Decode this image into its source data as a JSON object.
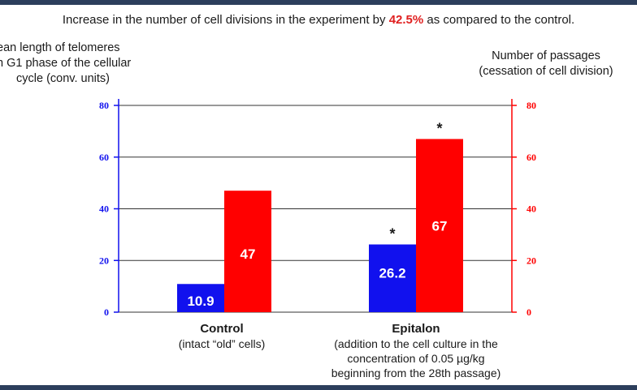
{
  "title": {
    "prefix": "Increase in the number of cell divisions in the experiment by",
    "highlight": "42.5%",
    "suffix": "as compared to the control."
  },
  "left_axis_label": [
    "ean length of telomeres",
    "n G1 phase of the cellular",
    "cycle (conv. units)"
  ],
  "right_axis_label": [
    "Number of passages",
    "(cessation of cell division)"
  ],
  "categories": [
    {
      "name": "Control",
      "desc": [
        "(intact “old” cells)"
      ]
    },
    {
      "name": "Epitalon",
      "desc": [
        "(addition to the cell culture in the",
        "concentration of 0.05 µg/kg",
        "beginning from the 28th passage)"
      ]
    }
  ],
  "colors": {
    "blue": "#1111ee",
    "red": "#ff0000",
    "title_highlight": "#e02020",
    "text": "#1a1a1a",
    "frame": "#2c3e5c"
  },
  "chart_data": {
    "type": "bar",
    "categories": [
      "Control",
      "Epitalon"
    ],
    "series": [
      {
        "values": [
          10.9,
          26.2
        ],
        "color": "#1111ee",
        "axis": "left",
        "significant": [
          false,
          true
        ]
      },
      {
        "values": [
          47,
          67
        ],
        "color": "#ff0000",
        "axis": "right",
        "significant": [
          false,
          true
        ]
      }
    ],
    "data_labels": [
      [
        "10.9",
        "26.2"
      ],
      [
        "47",
        "67"
      ]
    ],
    "significance_marker": "*",
    "ylim": [
      0,
      80
    ],
    "yticks": [
      0,
      20,
      40,
      60,
      80
    ],
    "y2lim": [
      0,
      80
    ],
    "y2ticks": [
      0,
      20,
      40,
      60,
      80
    ],
    "grid": true
  }
}
